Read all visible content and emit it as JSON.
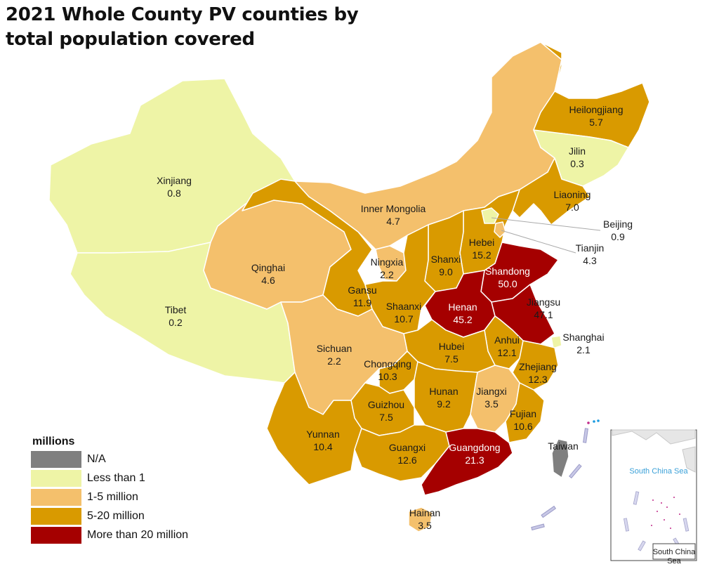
{
  "title": "2021 Whole County PV counties by total population covered",
  "legend": {
    "title": "millions",
    "items": [
      {
        "label": "N/A",
        "color": "#7f7f7f"
      },
      {
        "label": "Less than 1",
        "color": "#eef4a6"
      },
      {
        "label": "1-5 million",
        "color": "#f4c06c"
      },
      {
        "label": "5-20 million",
        "color": "#d99a00"
      },
      {
        "label": "More than 20 million",
        "color": "#a50000"
      }
    ]
  },
  "regions": {
    "xinjiang": {
      "name": "Xinjiang",
      "value": "0.8"
    },
    "tibet": {
      "name": "Tibet",
      "value": "0.2"
    },
    "qinghai": {
      "name": "Qinghai",
      "value": "4.6"
    },
    "inner_mongolia": {
      "name": "Inner Mongolia",
      "value": "4.7"
    },
    "heilongjiang": {
      "name": "Heilongjiang",
      "value": "5.7"
    },
    "jilin": {
      "name": "Jilin",
      "value": "0.3"
    },
    "liaoning": {
      "name": "Liaoning",
      "value": "7.0"
    },
    "beijing": {
      "name": "Beijing",
      "value": "0.9"
    },
    "tianjin": {
      "name": "Tianjin",
      "value": "4.3"
    },
    "hebei": {
      "name": "Hebei",
      "value": "15.2"
    },
    "shanxi": {
      "name": "Shanxi",
      "value": "9.0"
    },
    "ningxia": {
      "name": "Ningxia",
      "value": "2.2"
    },
    "gansu": {
      "name": "Gansu",
      "value": "11.9"
    },
    "shaanxi": {
      "name": "Shaanxi",
      "value": "10.7"
    },
    "shandong": {
      "name": "Shandong",
      "value": "50.0"
    },
    "henan": {
      "name": "Henan",
      "value": "45.2"
    },
    "jiangsu": {
      "name": "Jiangsu",
      "value": "47.1"
    },
    "shanghai": {
      "name": "Shanghai",
      "value": "2.1"
    },
    "anhui": {
      "name": "Anhui",
      "value": "12.1"
    },
    "hubei": {
      "name": "Hubei",
      "value": "7.5"
    },
    "sichuan": {
      "name": "Sichuan",
      "value": "2.2"
    },
    "chongqing": {
      "name": "Chongqing",
      "value": "10.3"
    },
    "zhejiang": {
      "name": "Zhejiang",
      "value": "12.3"
    },
    "hunan": {
      "name": "Hunan",
      "value": "9.2"
    },
    "jiangxi": {
      "name": "Jiangxi",
      "value": "3.5"
    },
    "guizhou": {
      "name": "Guizhou",
      "value": "7.5"
    },
    "fujian": {
      "name": "Fujian",
      "value": "10.6"
    },
    "yunnan": {
      "name": "Yunnan",
      "value": "10.4"
    },
    "guangxi": {
      "name": "Guangxi",
      "value": "12.6"
    },
    "guangdong": {
      "name": "Guangdong",
      "value": "21.3"
    },
    "taiwan": {
      "name": "Taiwan"
    },
    "hainan": {
      "name": "Hainan",
      "value": "3.5"
    }
  },
  "inset": {
    "sea_label": "South China Sea",
    "box_label": "South China Sea"
  }
}
